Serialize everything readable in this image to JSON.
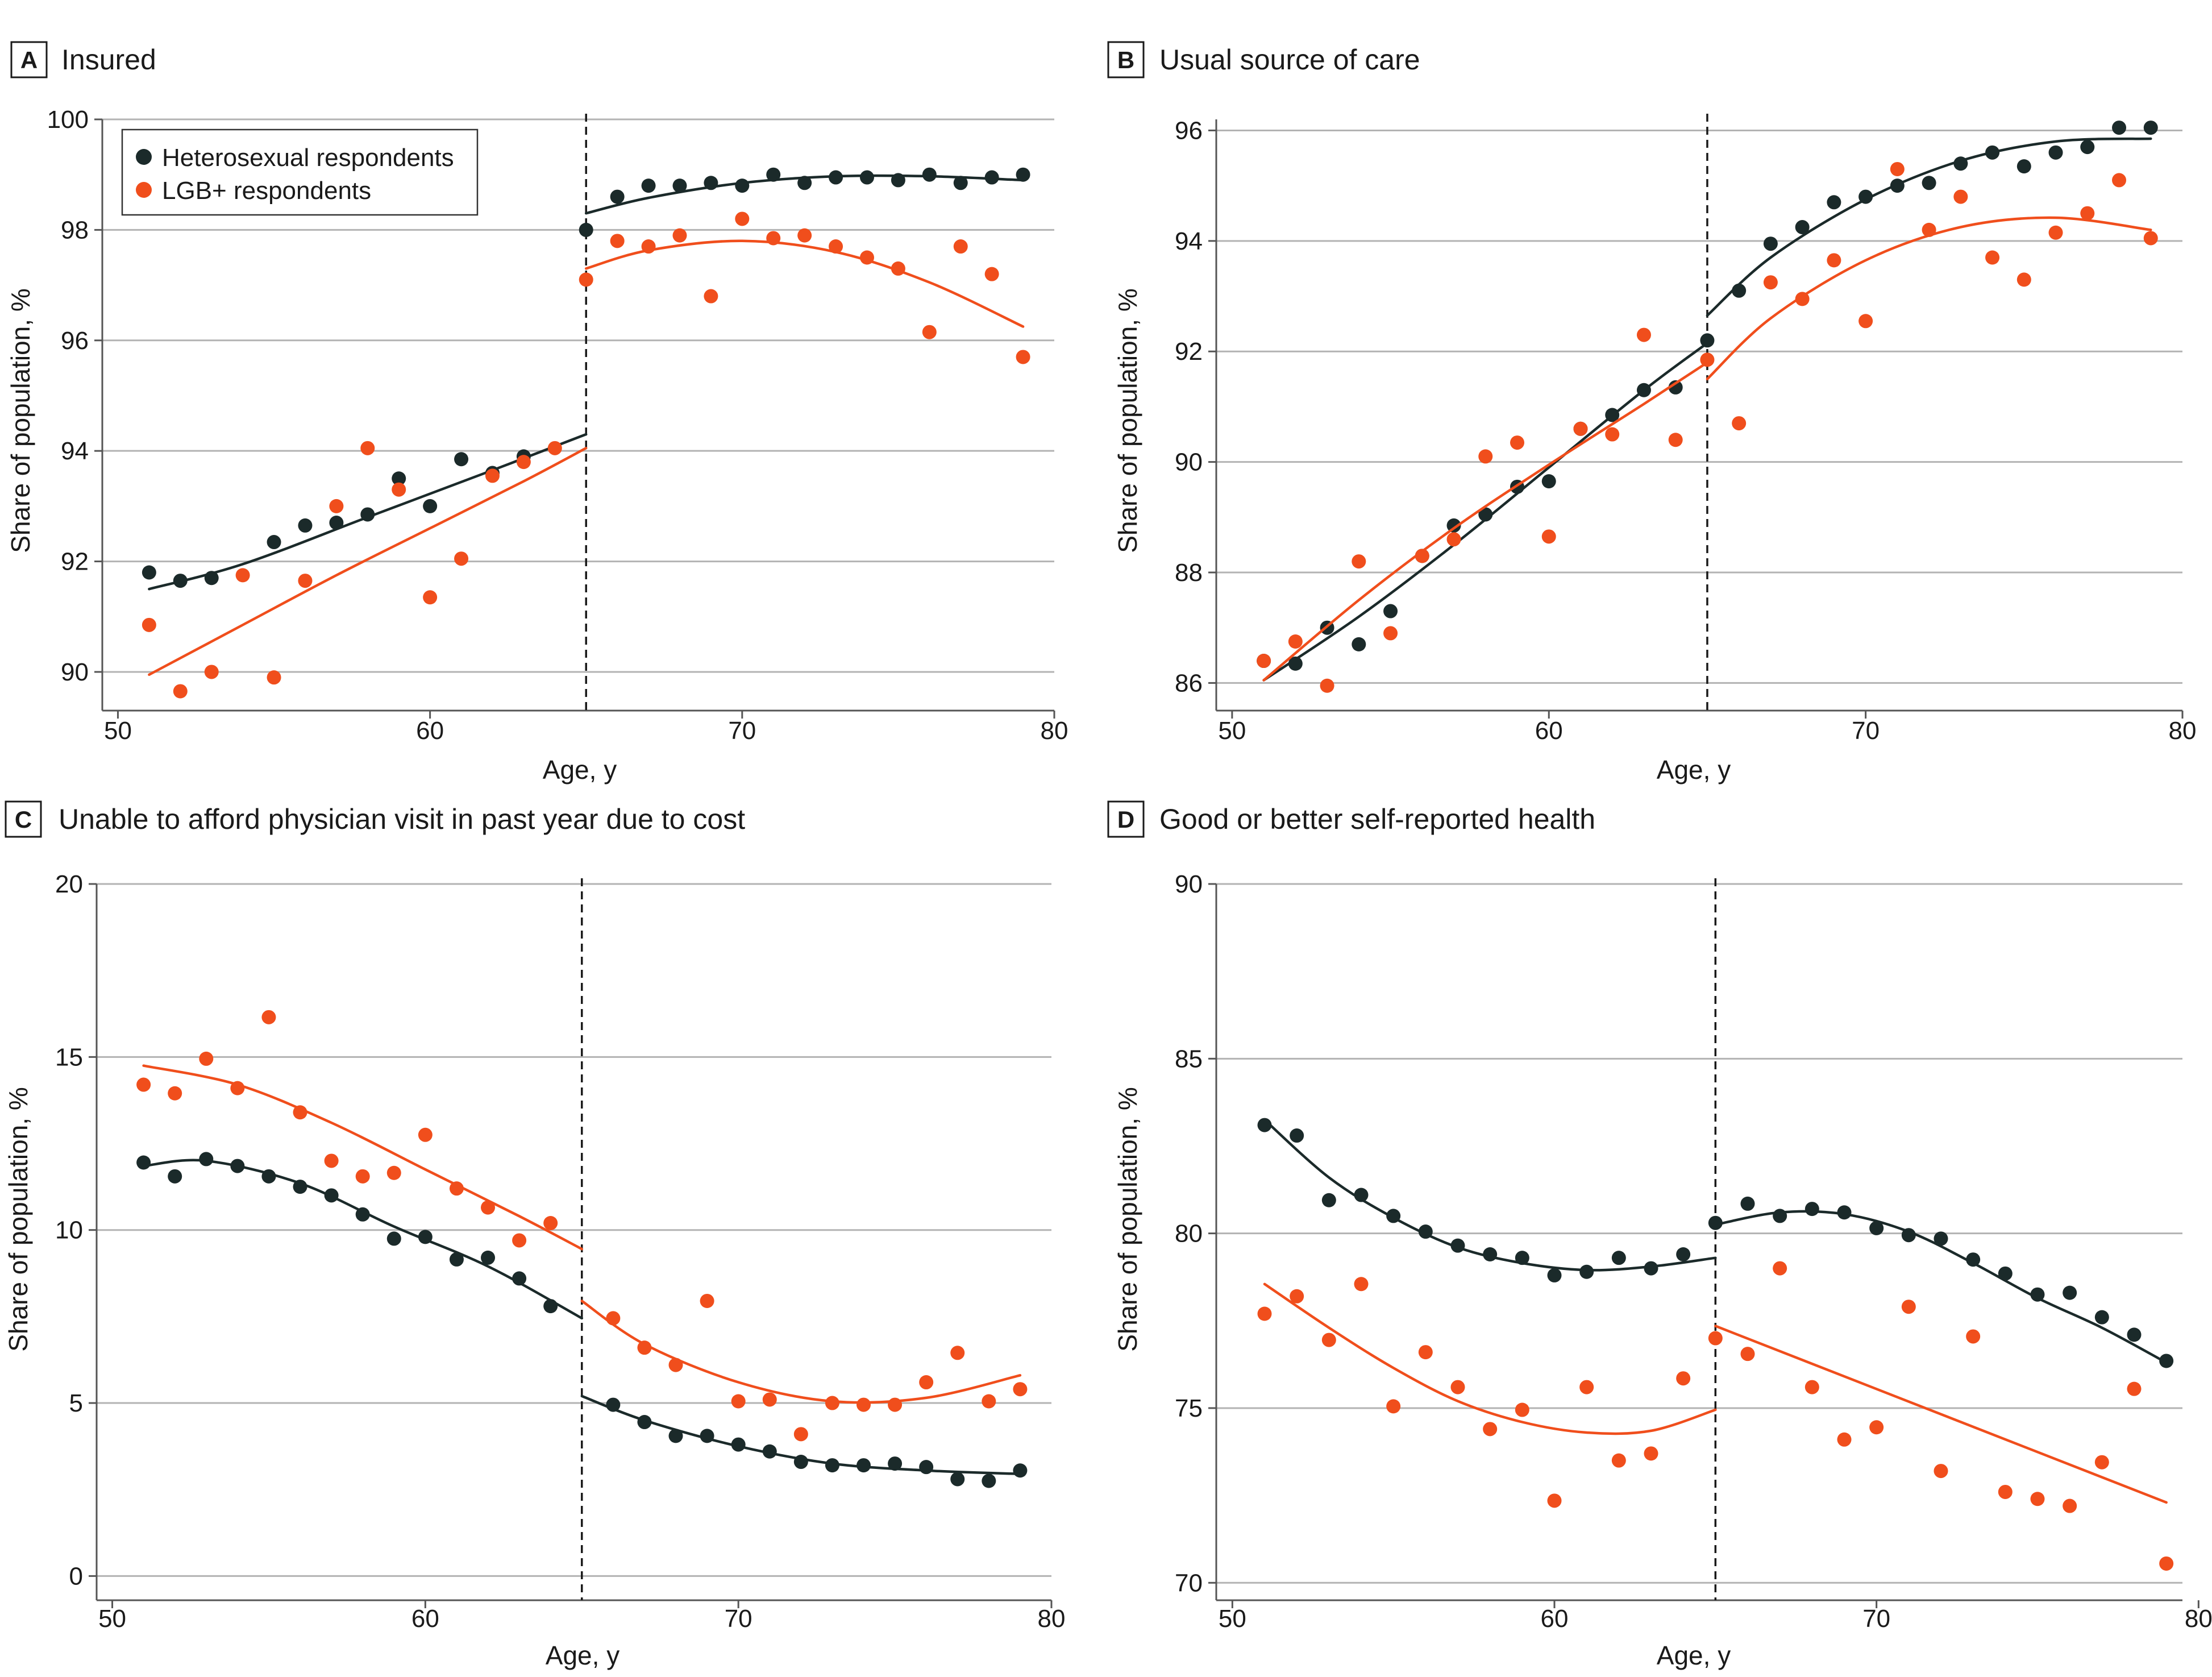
{
  "colors": {
    "heterosexual": "#1b2a2a",
    "lgb": "#f04e1c",
    "grid": "#b3b3b3",
    "axis": "#555555",
    "cutoff": "#1a1a1a"
  },
  "legend": {
    "items": [
      "Heterosexual respondents",
      "LGB+ respondents"
    ],
    "placement": "top-left of panel A"
  },
  "chart_data": [
    {
      "letter": "A",
      "type": "scatter",
      "title": "Insured",
      "xlabel": "Age, y",
      "ylabel": "Share of population, %",
      "xlim": [
        49.5,
        80
      ],
      "ylim": [
        89.3,
        100
      ],
      "xticks": [
        50,
        60,
        70,
        80
      ],
      "yticks": [
        90,
        92,
        94,
        96,
        98,
        100
      ],
      "cutoff": 65,
      "series": [
        {
          "name": "Heterosexual respondents",
          "x": [
            51,
            52,
            53,
            55,
            56,
            57,
            58,
            59,
            60,
            61,
            62,
            63,
            65,
            66,
            67,
            68,
            69,
            70,
            71,
            72,
            73,
            74,
            75,
            76,
            77,
            78,
            79
          ],
          "y": [
            91.8,
            91.65,
            91.7,
            92.35,
            92.65,
            92.7,
            92.85,
            93.5,
            93.0,
            93.85,
            93.6,
            93.9,
            98.0,
            98.6,
            98.8,
            98.8,
            98.85,
            98.8,
            99.0,
            98.85,
            98.95,
            98.95,
            98.9,
            99.0,
            98.85,
            98.95,
            99.0
          ],
          "fit_left": [
            [
              51,
              91.5
            ],
            [
              54,
              91.95
            ],
            [
              58,
              92.8
            ],
            [
              62,
              93.65
            ],
            [
              65,
              94.3
            ]
          ],
          "fit_right": [
            [
              65,
              98.3
            ],
            [
              67,
              98.58
            ],
            [
              70,
              98.85
            ],
            [
              73,
              98.97
            ],
            [
              76,
              98.97
            ],
            [
              79,
              98.9
            ]
          ]
        },
        {
          "name": "LGB+ respondents",
          "x": [
            51,
            52,
            53,
            54,
            55,
            56,
            57,
            58,
            59,
            60,
            61,
            62,
            63,
            64,
            65,
            66,
            67,
            68,
            69,
            70,
            71,
            72,
            73,
            74,
            75,
            76,
            77,
            78,
            79
          ],
          "y": [
            90.85,
            89.65,
            90.0,
            91.75,
            89.9,
            91.65,
            93.0,
            94.05,
            93.3,
            91.35,
            92.05,
            93.55,
            93.8,
            94.05,
            97.1,
            97.8,
            97.7,
            97.9,
            96.8,
            98.2,
            97.85,
            97.9,
            97.7,
            97.5,
            97.3,
            96.15,
            97.7,
            97.2,
            95.7
          ],
          "fit_left": [
            [
              51,
              89.95
            ],
            [
              54,
              90.85
            ],
            [
              57,
              91.75
            ],
            [
              60,
              92.6
            ],
            [
              63,
              93.45
            ],
            [
              65,
              94.05
            ]
          ],
          "fit_right": [
            [
              65,
              97.3
            ],
            [
              67,
              97.63
            ],
            [
              70,
              97.8
            ],
            [
              73,
              97.6
            ],
            [
              76,
              97.05
            ],
            [
              79,
              96.25
            ]
          ]
        }
      ]
    },
    {
      "letter": "B",
      "type": "scatter",
      "title": "Usual source of care",
      "xlabel": "Age, y",
      "ylabel": "Share of population, %",
      "xlim": [
        49.5,
        80
      ],
      "ylim": [
        85.5,
        96.2
      ],
      "xticks": [
        50,
        60,
        70,
        80
      ],
      "yticks": [
        86,
        88,
        90,
        92,
        94,
        96
      ],
      "cutoff": 65,
      "series": [
        {
          "name": "Heterosexual respondents",
          "x": [
            51,
            52,
            53,
            54,
            55,
            56,
            57,
            58,
            59,
            60,
            61,
            62,
            63,
            64,
            65,
            66,
            67,
            68,
            69,
            70,
            71,
            72,
            73,
            74,
            75,
            76,
            77,
            78,
            79
          ],
          "y": [
            86.4,
            86.35,
            87.0,
            86.7,
            87.3,
            88.3,
            88.85,
            89.05,
            89.55,
            89.65,
            90.6,
            90.85,
            91.3,
            91.35,
            92.2,
            93.1,
            93.95,
            94.25,
            94.7,
            94.8,
            95.0,
            95.05,
            95.4,
            95.6,
            95.35,
            95.6,
            95.7,
            96.05,
            96.05
          ],
          "fit_left": [
            [
              51,
              86.05
            ],
            [
              54,
              87.2
            ],
            [
              57,
              88.5
            ],
            [
              60,
              89.9
            ],
            [
              63,
              91.3
            ],
            [
              65,
              92.15
            ]
          ],
          "fit_right": [
            [
              65,
              92.65
            ],
            [
              67,
              93.7
            ],
            [
              70,
              94.75
            ],
            [
              73,
              95.45
            ],
            [
              76,
              95.8
            ],
            [
              79,
              95.85
            ]
          ]
        },
        {
          "name": "LGB+ respondents",
          "x": [
            51,
            52,
            53,
            54,
            55,
            56,
            57,
            58,
            59,
            60,
            61,
            62,
            63,
            64,
            65,
            66,
            67,
            68,
            69,
            70,
            71,
            72,
            73,
            74,
            75,
            76,
            77,
            78,
            79
          ],
          "y": [
            86.4,
            86.75,
            85.95,
            88.2,
            86.9,
            88.3,
            88.6,
            90.1,
            90.35,
            88.65,
            90.6,
            90.5,
            92.3,
            90.4,
            91.85,
            90.7,
            93.25,
            92.95,
            93.65,
            92.55,
            95.3,
            94.2,
            94.8,
            93.7,
            93.3,
            94.15,
            94.5,
            95.1,
            94.05
          ],
          "fit_left": [
            [
              51,
              86.05
            ],
            [
              54,
              87.5
            ],
            [
              57,
              88.8
            ],
            [
              60,
              89.95
            ],
            [
              63,
              91.05
            ],
            [
              65,
              91.8
            ]
          ],
          "fit_right": [
            [
              65,
              91.5
            ],
            [
              67,
              92.6
            ],
            [
              70,
              93.65
            ],
            [
              73,
              94.25
            ],
            [
              76,
              94.42
            ],
            [
              79,
              94.2
            ]
          ]
        }
      ]
    },
    {
      "letter": "C",
      "type": "scatter",
      "title": "Unable to afford physician visit in past year due to cost",
      "xlabel": "Age, y",
      "ylabel": "Share of population, %",
      "xlim": [
        49.5,
        80
      ],
      "ylim": [
        -0.7,
        20
      ],
      "xticks": [
        50,
        60,
        70,
        80
      ],
      "yticks": [
        0,
        5,
        10,
        15,
        20
      ],
      "cutoff": 65,
      "series": [
        {
          "name": "Heterosexual respondents",
          "x": [
            51,
            52,
            53,
            54,
            55,
            56,
            57,
            58,
            59,
            60,
            61,
            62,
            63,
            64,
            66,
            67,
            68,
            69,
            70,
            71,
            72,
            73,
            74,
            75,
            76,
            77,
            78,
            79
          ],
          "y": [
            11.95,
            11.55,
            12.05,
            11.85,
            11.55,
            11.25,
            11.0,
            10.45,
            9.75,
            9.8,
            9.15,
            9.2,
            8.6,
            7.8,
            4.95,
            4.45,
            4.05,
            4.05,
            3.8,
            3.6,
            3.3,
            3.2,
            3.2,
            3.25,
            3.15,
            2.8,
            2.75,
            3.05
          ],
          "fit_left": [
            [
              51,
              11.85
            ],
            [
              53,
              12.0
            ],
            [
              56,
              11.35
            ],
            [
              59,
              10.1
            ],
            [
              62,
              8.95
            ],
            [
              65,
              7.45
            ]
          ],
          "fit_right": [
            [
              65,
              5.2
            ],
            [
              67,
              4.5
            ],
            [
              70,
              3.75
            ],
            [
              73,
              3.25
            ],
            [
              76,
              3.05
            ],
            [
              79,
              2.95
            ]
          ]
        },
        {
          "name": "LGB+ respondents",
          "x": [
            51,
            52,
            53,
            54,
            55,
            56,
            57,
            58,
            59,
            60,
            61,
            62,
            63,
            64,
            66,
            67,
            68,
            69,
            70,
            71,
            72,
            73,
            74,
            75,
            76,
            77,
            78,
            79
          ],
          "y": [
            14.2,
            13.95,
            14.95,
            14.1,
            16.15,
            13.4,
            12.0,
            11.55,
            11.65,
            12.75,
            11.2,
            10.65,
            9.7,
            10.2,
            7.45,
            6.6,
            6.1,
            7.95,
            5.05,
            5.1,
            4.1,
            5.0,
            4.95,
            4.95,
            5.6,
            6.45,
            5.05,
            5.4
          ],
          "fit_left": [
            [
              51,
              14.75
            ],
            [
              54,
              14.2
            ],
            [
              57,
              13.1
            ],
            [
              60,
              11.75
            ],
            [
              63,
              10.4
            ],
            [
              65,
              9.45
            ]
          ],
          "fit_right": [
            [
              65,
              7.95
            ],
            [
              67,
              6.7
            ],
            [
              70,
              5.6
            ],
            [
              73,
              5.05
            ],
            [
              76,
              5.15
            ],
            [
              79,
              5.8
            ]
          ]
        }
      ]
    },
    {
      "letter": "D",
      "type": "scatter",
      "title": "Good or better self-reported health",
      "xlabel": "Age, y",
      "ylabel": "Share of population, %",
      "xlim": [
        49.5,
        79.5
      ],
      "ylim": [
        69.5,
        90
      ],
      "xticks": [
        50,
        60,
        70,
        80
      ],
      "yticks": [
        70,
        75,
        80,
        85,
        90
      ],
      "cutoff": 65,
      "series": [
        {
          "name": "Heterosexual respondents",
          "x": [
            51,
            52,
            53,
            54,
            55,
            56,
            57,
            58,
            59,
            60,
            61,
            62,
            63,
            64,
            65,
            66,
            67,
            68,
            69,
            70,
            71,
            72,
            73,
            74,
            75,
            76,
            77,
            78,
            79
          ],
          "y": [
            83.1,
            82.8,
            80.95,
            81.1,
            80.5,
            80.05,
            79.65,
            79.4,
            79.3,
            78.8,
            78.9,
            79.3,
            79.0,
            79.4,
            80.3,
            80.85,
            80.5,
            80.7,
            80.6,
            80.15,
            79.95,
            79.85,
            79.25,
            78.85,
            78.25,
            78.3,
            77.6,
            77.1,
            76.35
          ],
          "fit_left": [
            [
              51,
              83.25
            ],
            [
              53,
              81.6
            ],
            [
              55,
              80.45
            ],
            [
              57,
              79.6
            ],
            [
              59,
              79.15
            ],
            [
              61,
              78.95
            ],
            [
              63,
              79.05
            ],
            [
              65,
              79.3
            ]
          ],
          "fit_right": [
            [
              65,
              80.25
            ],
            [
              67,
              80.6
            ],
            [
              69,
              80.55
            ],
            [
              71,
              80.05
            ],
            [
              73,
              79.15
            ],
            [
              75,
              78.15
            ],
            [
              77,
              77.3
            ],
            [
              79,
              76.3
            ]
          ]
        },
        {
          "name": "LGB+ respondents",
          "x": [
            51,
            52,
            53,
            54,
            55,
            56,
            57,
            58,
            59,
            60,
            61,
            62,
            63,
            64,
            65,
            66,
            67,
            68,
            69,
            70,
            71,
            72,
            73,
            74,
            75,
            76,
            77,
            78,
            79
          ],
          "y": [
            77.7,
            78.2,
            76.95,
            78.55,
            75.05,
            76.6,
            75.6,
            74.4,
            74.95,
            72.35,
            75.6,
            73.5,
            73.7,
            75.85,
            77.0,
            76.55,
            79.0,
            75.6,
            74.1,
            74.45,
            77.9,
            73.2,
            77.05,
            72.6,
            72.4,
            72.2,
            73.45,
            75.55,
            70.55
          ],
          "fit_left": [
            [
              51,
              78.55
            ],
            [
              53,
              77.3
            ],
            [
              55,
              76.15
            ],
            [
              57,
              75.2
            ],
            [
              59,
              74.6
            ],
            [
              61,
              74.3
            ],
            [
              63,
              74.35
            ],
            [
              65,
              74.95
            ]
          ],
          "fit_right": [
            [
              65,
              77.35
            ],
            [
              79,
              72.3
            ]
          ]
        }
      ]
    }
  ]
}
